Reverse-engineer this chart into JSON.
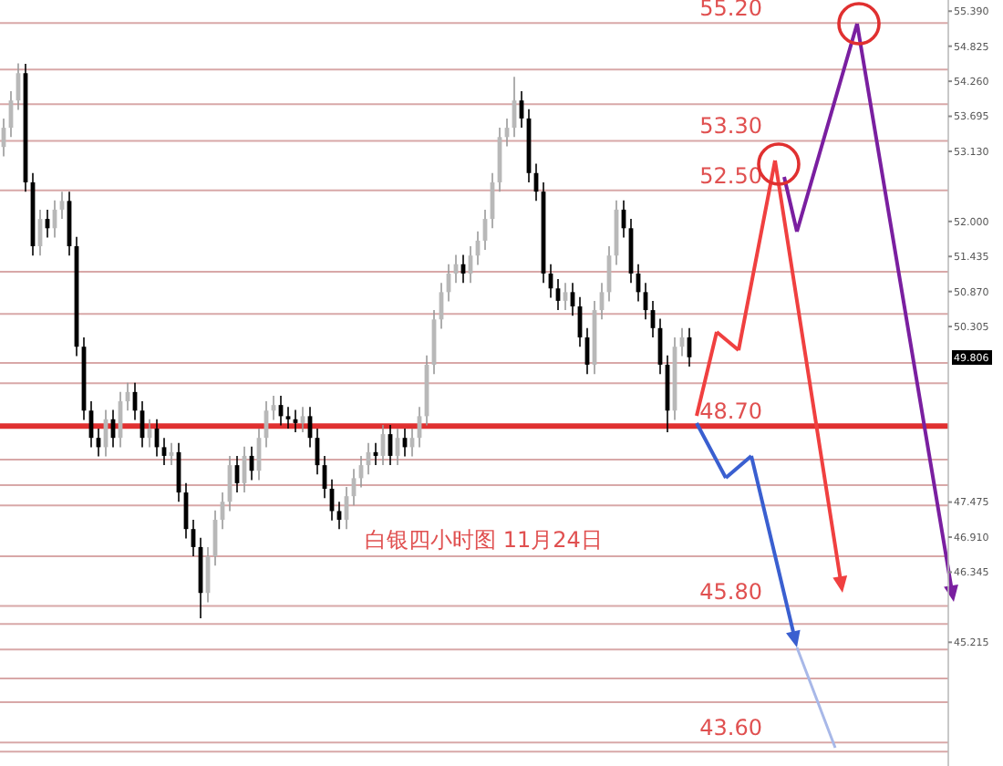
{
  "chart_data": {
    "type": "candlestick",
    "title": "白银四小时图  11月24日",
    "categories": [
      null,
      null,
      null,
      null,
      null,
      null,
      null,
      null,
      null,
      null,
      null,
      null,
      null,
      null,
      null,
      null,
      null,
      null,
      null,
      null,
      null,
      null,
      null,
      null,
      null,
      null,
      null,
      null,
      null,
      null,
      null,
      null,
      null,
      null,
      null,
      null,
      null,
      null,
      null,
      null,
      null,
      null,
      null,
      null,
      null,
      null,
      null,
      null,
      null,
      null,
      null,
      null,
      null,
      null,
      null,
      null,
      null,
      null,
      null,
      null,
      null,
      null,
      null,
      null,
      null,
      null,
      null,
      null,
      null,
      null,
      null,
      null,
      null,
      null,
      null,
      null,
      null,
      null,
      null,
      null,
      null,
      null,
      null,
      null,
      null,
      null,
      null,
      null,
      null,
      null,
      null,
      null,
      null,
      null,
      null,
      null,
      null,
      null,
      null,
      null,
      null,
      null,
      null,
      null,
      null,
      null,
      null,
      null,
      null,
      null,
      null,
      null,
      null,
      null,
      null,
      null,
      null,
      null,
      null,
      null,
      null,
      null,
      null,
      null,
      null,
      null,
      null,
      null,
      null,
      null
    ],
    "ohlc": [
      [
        53.2,
        53.66,
        53.05,
        53.51
      ],
      [
        53.51,
        54.1,
        53.36,
        53.95
      ],
      [
        53.95,
        54.55,
        53.8,
        54.39
      ],
      [
        54.39,
        54.54,
        52.48,
        52.63
      ],
      [
        52.63,
        52.78,
        51.45,
        51.6
      ],
      [
        51.6,
        52.19,
        51.45,
        52.04
      ],
      [
        52.04,
        52.19,
        51.74,
        51.89
      ],
      [
        51.89,
        52.34,
        51.74,
        52.19
      ],
      [
        52.19,
        52.48,
        52.04,
        52.33
      ],
      [
        52.33,
        52.48,
        51.45,
        51.6
      ],
      [
        51.6,
        51.75,
        49.83,
        49.98
      ],
      [
        49.98,
        50.13,
        48.8,
        48.95
      ],
      [
        48.95,
        49.1,
        48.36,
        48.51
      ],
      [
        48.51,
        48.66,
        48.21,
        48.36
      ],
      [
        48.36,
        48.96,
        48.21,
        48.81
      ],
      [
        48.81,
        48.96,
        48.36,
        48.51
      ],
      [
        48.51,
        49.25,
        48.36,
        49.1
      ],
      [
        49.1,
        49.4,
        48.95,
        49.25
      ],
      [
        49.25,
        49.4,
        48.8,
        48.95
      ],
      [
        48.95,
        49.1,
        48.36,
        48.51
      ],
      [
        48.51,
        48.81,
        48.36,
        48.66
      ],
      [
        48.66,
        48.81,
        48.21,
        48.36
      ],
      [
        48.36,
        48.51,
        48.07,
        48.22
      ],
      [
        48.22,
        48.43,
        48.07,
        48.28
      ],
      [
        48.28,
        48.43,
        47.48,
        47.63
      ],
      [
        47.63,
        47.78,
        46.89,
        47.04
      ],
      [
        47.04,
        47.19,
        46.6,
        46.75
      ],
      [
        46.75,
        46.9,
        45.6,
        46.01
      ],
      [
        46.01,
        46.75,
        45.86,
        46.6
      ],
      [
        46.6,
        47.34,
        46.45,
        47.19
      ],
      [
        47.19,
        47.63,
        47.04,
        47.48
      ],
      [
        47.48,
        48.22,
        47.33,
        48.07
      ],
      [
        48.07,
        48.22,
        47.63,
        47.78
      ],
      [
        47.78,
        48.37,
        47.63,
        48.22
      ],
      [
        48.22,
        48.37,
        47.83,
        47.98
      ],
      [
        47.98,
        48.66,
        47.83,
        48.51
      ],
      [
        48.51,
        49.1,
        48.36,
        48.95
      ],
      [
        48.95,
        49.19,
        48.8,
        49.04
      ],
      [
        49.04,
        49.19,
        48.71,
        48.86
      ],
      [
        48.86,
        49.01,
        48.66,
        48.81
      ],
      [
        48.81,
        48.96,
        48.6,
        48.75
      ],
      [
        48.75,
        49.01,
        48.6,
        48.86
      ],
      [
        48.86,
        49.01,
        48.36,
        48.51
      ],
      [
        48.51,
        48.66,
        47.92,
        48.07
      ],
      [
        48.07,
        48.22,
        47.54,
        47.69
      ],
      [
        47.69,
        47.84,
        47.18,
        47.33
      ],
      [
        47.33,
        47.48,
        47.04,
        47.19
      ],
      [
        47.19,
        47.72,
        47.04,
        47.57
      ],
      [
        47.57,
        48.01,
        47.42,
        47.86
      ],
      [
        47.86,
        48.22,
        47.71,
        48.07
      ],
      [
        48.07,
        48.43,
        47.92,
        48.28
      ],
      [
        48.28,
        48.43,
        48.07,
        48.22
      ],
      [
        48.22,
        48.72,
        48.07,
        48.57
      ],
      [
        48.57,
        48.72,
        48.07,
        48.22
      ],
      [
        48.22,
        48.66,
        48.07,
        48.51
      ],
      [
        48.51,
        48.66,
        48.21,
        48.36
      ],
      [
        48.36,
        48.66,
        48.21,
        48.51
      ],
      [
        48.51,
        49.01,
        48.36,
        48.86
      ],
      [
        48.86,
        49.84,
        48.71,
        49.69
      ],
      [
        49.69,
        50.57,
        49.54,
        50.42
      ],
      [
        50.42,
        51.01,
        50.27,
        50.86
      ],
      [
        50.86,
        51.31,
        50.71,
        51.16
      ],
      [
        51.16,
        51.46,
        51.01,
        51.31
      ],
      [
        51.31,
        51.46,
        51.01,
        51.16
      ],
      [
        51.16,
        51.6,
        51.01,
        51.45
      ],
      [
        51.45,
        51.84,
        51.3,
        51.69
      ],
      [
        51.69,
        52.19,
        51.54,
        52.04
      ],
      [
        52.04,
        52.78,
        51.89,
        52.63
      ],
      [
        52.63,
        53.51,
        52.48,
        53.36
      ],
      [
        53.36,
        53.66,
        53.21,
        53.51
      ],
      [
        53.51,
        54.33,
        53.36,
        53.95
      ],
      [
        53.95,
        54.1,
        53.51,
        53.66
      ],
      [
        53.66,
        53.81,
        52.63,
        52.78
      ],
      [
        52.78,
        52.93,
        52.33,
        52.48
      ],
      [
        52.48,
        52.63,
        51.01,
        51.16
      ],
      [
        51.16,
        51.31,
        50.77,
        50.92
      ],
      [
        50.92,
        51.07,
        50.57,
        50.72
      ],
      [
        50.72,
        51.01,
        50.57,
        50.86
      ],
      [
        50.86,
        51.01,
        50.48,
        50.63
      ],
      [
        50.63,
        50.78,
        49.98,
        50.13
      ],
      [
        50.13,
        50.28,
        49.54,
        49.69
      ],
      [
        49.69,
        50.72,
        49.54,
        50.57
      ],
      [
        50.57,
        51.01,
        50.42,
        50.86
      ],
      [
        50.86,
        51.6,
        50.71,
        51.45
      ],
      [
        51.45,
        52.34,
        51.3,
        52.19
      ],
      [
        52.19,
        52.34,
        51.74,
        51.89
      ],
      [
        51.89,
        52.04,
        51.01,
        51.16
      ],
      [
        51.16,
        51.31,
        50.71,
        50.86
      ],
      [
        50.86,
        51.01,
        50.42,
        50.57
      ],
      [
        50.57,
        50.72,
        50.13,
        50.28
      ],
      [
        50.28,
        50.43,
        49.54,
        49.69
      ],
      [
        49.69,
        49.84,
        48.6,
        48.95
      ],
      [
        48.95,
        50.13,
        48.8,
        49.98
      ],
      [
        49.98,
        50.28,
        49.83,
        50.13
      ],
      [
        50.13,
        50.28,
        49.66,
        49.81
      ],
      null,
      null,
      null,
      null,
      null,
      null,
      null,
      null,
      null,
      null,
      null,
      null,
      null,
      null,
      null,
      null,
      null,
      null,
      null,
      null,
      null,
      null,
      null,
      null,
      null,
      null,
      null,
      null,
      null,
      null,
      null,
      null,
      null,
      null,
      null
    ],
    "ylim": [
      43.22,
      55.57
    ],
    "yticks": [
      {
        "value": 55.39,
        "label": "55.390"
      },
      {
        "value": 54.825,
        "label": "54.825"
      },
      {
        "value": 54.26,
        "label": "54.260"
      },
      {
        "value": 53.695,
        "label": "53.695"
      },
      {
        "value": 53.13,
        "label": "53.130"
      },
      {
        "value": 52,
        "label": "52.000"
      },
      {
        "value": 51.435,
        "label": "51.435"
      },
      {
        "value": 50.87,
        "label": "50.870"
      },
      {
        "value": 50.305,
        "label": "50.305"
      },
      {
        "value": 47.475,
        "label": "47.475"
      },
      {
        "value": 46.91,
        "label": "46.910"
      },
      {
        "value": 46.345,
        "label": "46.345"
      },
      {
        "value": 45.215,
        "label": "45.215"
      }
    ],
    "tick_labels": "y",
    "ref_lines": [
      {
        "axis": "y",
        "value": 55.2,
        "label": "55.20",
        "color": "#d8a8a8"
      },
      {
        "axis": "y",
        "value": 54.45,
        "label": null,
        "color": "#d8a8a8"
      },
      {
        "axis": "y",
        "value": 53.89,
        "label": null,
        "color": "#d8a8a8"
      },
      {
        "axis": "y",
        "value": 53.3,
        "label": "53.30",
        "color": "#d8a8a8"
      },
      {
        "axis": "y",
        "value": 52.5,
        "label": "52.50",
        "color": "#d8a8a8"
      },
      {
        "axis": "y",
        "value": 51.19,
        "label": null,
        "color": "#d8a8a8"
      },
      {
        "axis": "y",
        "value": 50.51,
        "label": null,
        "color": "#d8a8a8"
      },
      {
        "axis": "y",
        "value": 49.72,
        "label": null,
        "color": "#d8a8a8"
      },
      {
        "axis": "y",
        "value": 49.39,
        "label": null,
        "color": "#d8a8a8"
      },
      {
        "axis": "y",
        "value": 48.7,
        "label": "48.70",
        "color": "#e03030"
      },
      {
        "axis": "y",
        "value": 48.16,
        "label": null,
        "color": "#d8a8a8"
      },
      {
        "axis": "y",
        "value": 47.75,
        "label": null,
        "color": "#d8a8a8"
      },
      {
        "axis": "y",
        "value": 47.42,
        "label": null,
        "color": "#d8a8a8"
      },
      {
        "axis": "y",
        "value": 46.6,
        "label": null,
        "color": "#d8a8a8"
      },
      {
        "axis": "y",
        "value": 45.8,
        "label": "45.80",
        "color": "#d8a8a8"
      },
      {
        "axis": "y",
        "value": 45.51,
        "label": null,
        "color": "#d8a8a8"
      },
      {
        "axis": "y",
        "value": 45.1,
        "label": null,
        "color": "#d8a8a8"
      },
      {
        "axis": "y",
        "value": 44.63,
        "label": null,
        "color": "#d8a8a8"
      },
      {
        "axis": "y",
        "value": 44.25,
        "label": null,
        "color": "#d8a8a8"
      },
      {
        "axis": "y",
        "value": 43.6,
        "label": "43.60",
        "color": "#d8a8a8"
      },
      {
        "axis": "y",
        "value": 43.45,
        "label": null,
        "color": "#d8a8a8"
      }
    ],
    "annotations": [
      {
        "text": "49.806",
        "y": 49.806
      }
    ]
  }
}
